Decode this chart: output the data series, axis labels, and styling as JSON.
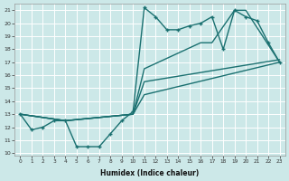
{
  "xlabel": "Humidex (Indice chaleur)",
  "background_color": "#cce8e8",
  "line_color": "#1a7070",
  "grid_color": "#b8d8d8",
  "xlim": [
    -0.5,
    23.5
  ],
  "ylim": [
    9.8,
    21.5
  ],
  "yticks": [
    10,
    11,
    12,
    13,
    14,
    15,
    16,
    17,
    18,
    19,
    20,
    21
  ],
  "xticks": [
    0,
    1,
    2,
    3,
    4,
    5,
    6,
    7,
    8,
    9,
    10,
    11,
    12,
    13,
    14,
    15,
    16,
    17,
    18,
    19,
    20,
    21,
    22,
    23
  ],
  "series": [
    {
      "x": [
        0,
        1,
        2,
        3,
        4,
        5,
        6,
        7,
        8,
        9,
        10,
        11,
        12,
        13,
        14,
        15,
        16,
        17,
        18,
        19,
        20,
        21,
        22,
        23
      ],
      "y": [
        13,
        11.8,
        12.0,
        12.5,
        12.5,
        10.5,
        10.5,
        10.5,
        11.5,
        12.5,
        13.2,
        21.2,
        20.5,
        19.5,
        19.5,
        19.8,
        20.0,
        20.5,
        18.0,
        21.0,
        20.5,
        20.2,
        18.5,
        17.0
      ],
      "marker": "+",
      "markersize": 3.5,
      "linewidth": 1.0,
      "zorder": 4
    },
    {
      "x": [
        0,
        4,
        10,
        11,
        16,
        17,
        19,
        20,
        23
      ],
      "y": [
        13,
        12.5,
        13.0,
        16.5,
        18.5,
        18.5,
        21.0,
        21.0,
        17.0
      ],
      "marker": null,
      "markersize": 0,
      "linewidth": 1.0,
      "zorder": 2
    },
    {
      "x": [
        0,
        4,
        10,
        11,
        23
      ],
      "y": [
        13,
        12.5,
        13.0,
        14.5,
        17.0
      ],
      "marker": null,
      "markersize": 0,
      "linewidth": 1.0,
      "zorder": 2
    },
    {
      "x": [
        0,
        4,
        10,
        11,
        23
      ],
      "y": [
        13,
        12.5,
        13.0,
        15.5,
        17.2
      ],
      "marker": null,
      "markersize": 0,
      "linewidth": 1.0,
      "zorder": 2
    }
  ]
}
